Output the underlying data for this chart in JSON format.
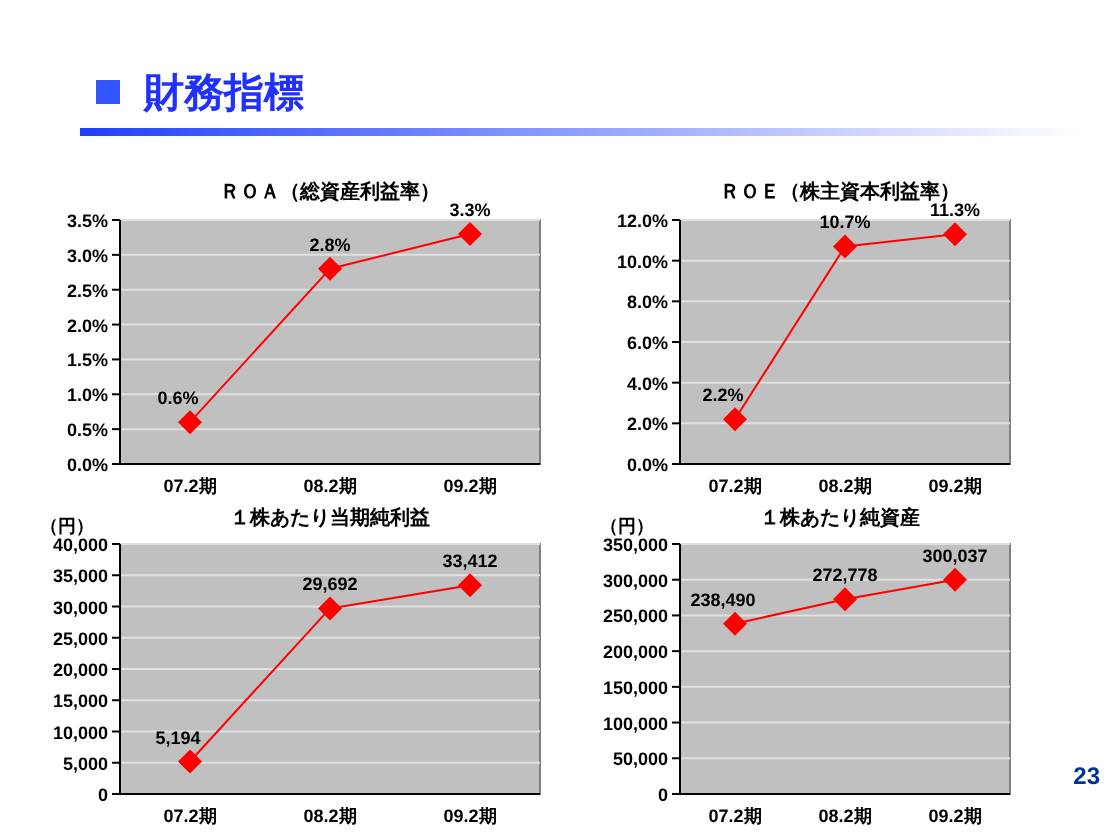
{
  "chart_data": [
    {
      "type": "line",
      "title": "ＲＯＡ（総資産利益率）",
      "annotations": [
        "財務指標"
      ],
      "categories": [
        "07.2期",
        "08.2期",
        "09.2期"
      ],
      "series": [
        {
          "color": "#ff0000",
          "values": [
            0.6,
            2.8,
            3.3
          ],
          "value_labels": [
            "0.6%",
            "2.8%",
            "3.3%"
          ]
        }
      ],
      "ylim": [
        0,
        3.5
      ],
      "yticks": [
        {
          "value": 0,
          "label": "0.0%"
        },
        {
          "value": 0.5,
          "label": "0.5%"
        },
        {
          "value": 1,
          "label": "1.0%"
        },
        {
          "value": 1.5,
          "label": "1.5%"
        },
        {
          "value": 2,
          "label": "2.0%"
        },
        {
          "value": 2.5,
          "label": "2.5%"
        },
        {
          "value": 3,
          "label": "3.0%"
        },
        {
          "value": 3.5,
          "label": "3.5%"
        }
      ],
      "grid": "y",
      "marker": "diamond",
      "line_style": "solid"
    },
    {
      "type": "line",
      "title": "ＲＯＥ（株主資本利益率）",
      "categories": [
        "07.2期",
        "08.2期",
        "09.2期"
      ],
      "series": [
        {
          "color": "#ff0000",
          "values": [
            2.2,
            10.7,
            11.3
          ],
          "value_labels": [
            "2.2%",
            "10.7%",
            "11.3%"
          ]
        }
      ],
      "ylim": [
        0,
        12
      ],
      "yticks": [
        {
          "value": 0,
          "label": "0.0%"
        },
        {
          "value": 2,
          "label": "2.0%"
        },
        {
          "value": 4,
          "label": "4.0%"
        },
        {
          "value": 6,
          "label": "6.0%"
        },
        {
          "value": 8,
          "label": "8.0%"
        },
        {
          "value": 10,
          "label": "10.0%"
        },
        {
          "value": 12,
          "label": "12.0%"
        }
      ],
      "grid": "y",
      "marker": "diamond",
      "line_style": "solid"
    },
    {
      "type": "line",
      "title": "１株あたり当期純利益",
      "ylabel": "（円）",
      "categories": [
        "07.2期",
        "08.2期",
        "09.2期"
      ],
      "series": [
        {
          "color": "#ff0000",
          "values": [
            5194,
            29692,
            33412
          ],
          "value_labels": [
            "5,194",
            "29,692",
            "33,412"
          ]
        }
      ],
      "ylim": [
        0,
        40000
      ],
      "yticks": [
        0,
        {
          "value": 5000,
          "label": "5,000"
        },
        {
          "value": 10000,
          "label": "10,000"
        },
        {
          "value": 15000,
          "label": "15,000"
        },
        {
          "value": 20000,
          "label": "20,000"
        },
        {
          "value": 25000,
          "label": "25,000"
        },
        {
          "value": 30000,
          "label": "30,000"
        },
        {
          "value": 35000,
          "label": "35,000"
        },
        {
          "value": 40000,
          "label": "40,000"
        }
      ],
      "grid": "y",
      "marker": "diamond",
      "line_style": "solid"
    },
    {
      "type": "line",
      "title": "１株あたり純資産",
      "ylabel": "（円）",
      "annotations": [
        "23"
      ],
      "categories": [
        "07.2期",
        "08.2期",
        "09.2期"
      ],
      "series": [
        {
          "color": "#ff0000",
          "values": [
            238490,
            272778,
            300037
          ],
          "value_labels": [
            "238,490",
            "272,778",
            "300,037"
          ]
        }
      ],
      "ylim": [
        0,
        350000
      ],
      "yticks": [
        0,
        {
          "value": 50000,
          "label": "50,000"
        },
        {
          "value": 100000,
          "label": "100,000"
        },
        {
          "value": 150000,
          "label": "150,000"
        },
        {
          "value": 200000,
          "label": "200,000"
        },
        {
          "value": 250000,
          "label": "250,000"
        },
        {
          "value": 300000,
          "label": "300,000"
        },
        {
          "value": 350000,
          "label": "350,000"
        }
      ],
      "grid": "y",
      "marker": "diamond",
      "line_style": "solid"
    }
  ]
}
